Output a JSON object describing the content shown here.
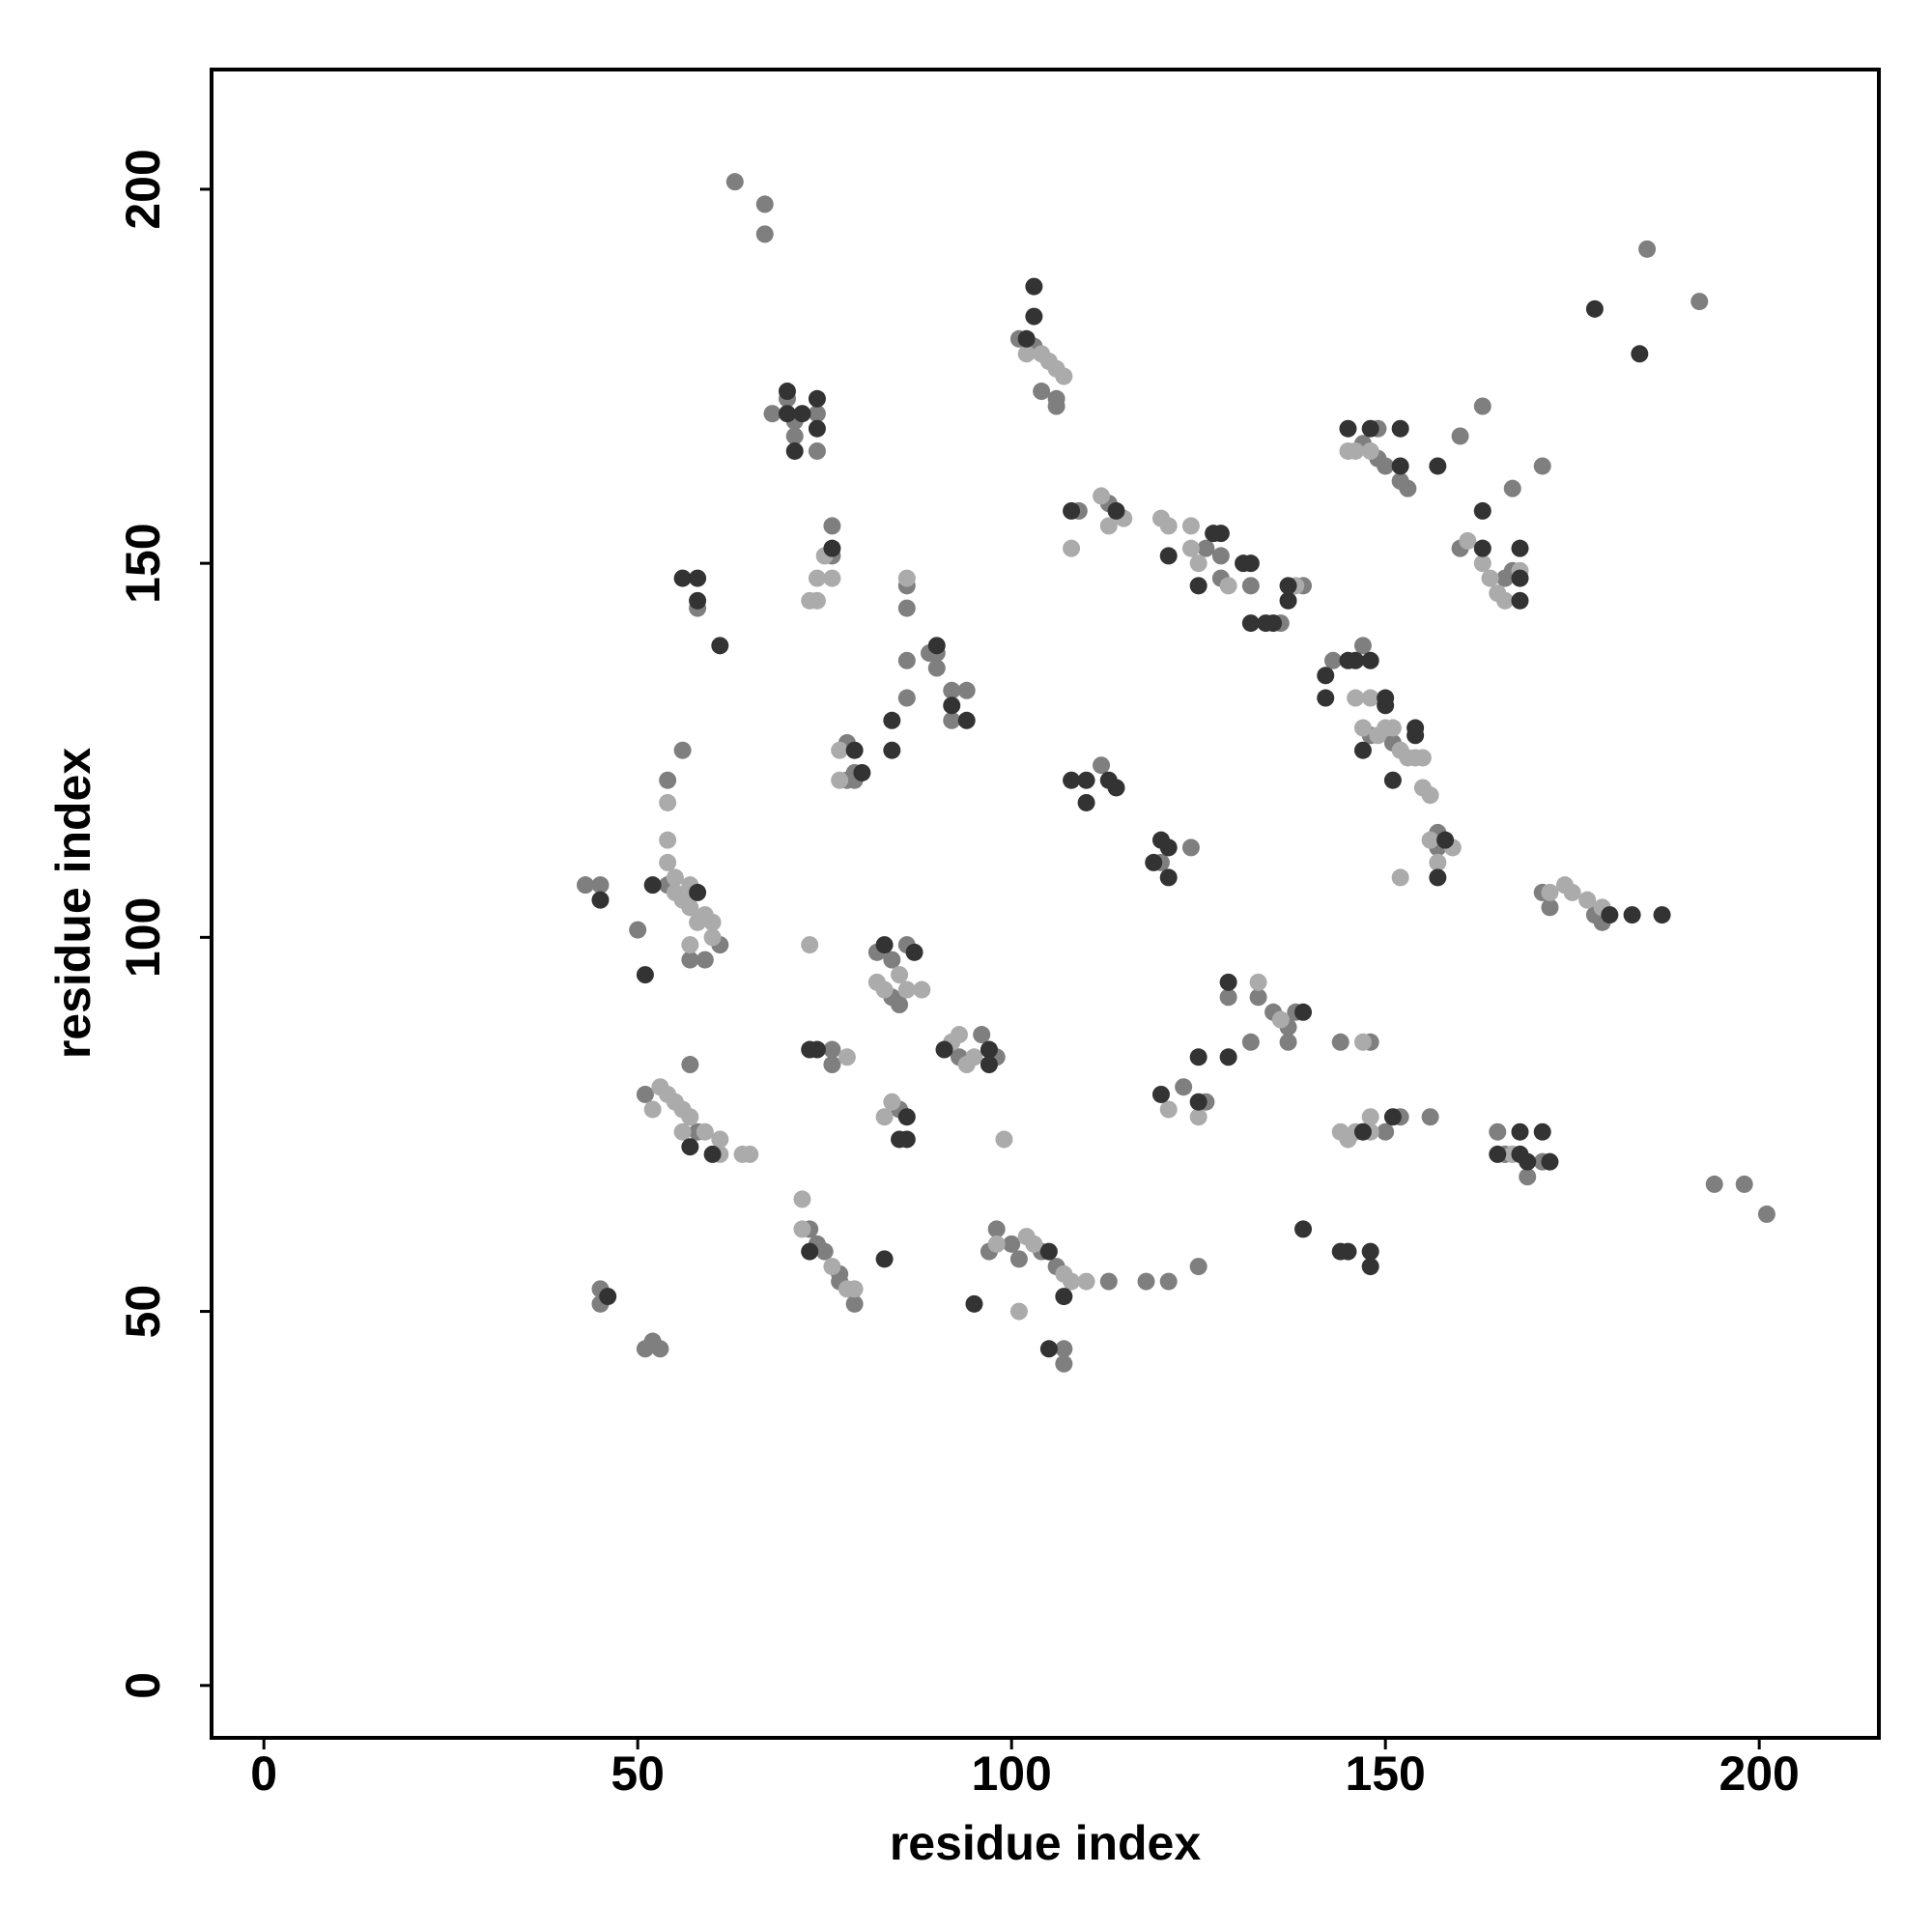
{
  "chart_data": {
    "type": "scatter",
    "x_label": "residue index",
    "y_label": "residue index",
    "xlim": [
      -7,
      216
    ],
    "ylim": [
      -7,
      216
    ],
    "xticks": [
      0,
      50,
      100,
      150,
      200
    ],
    "yticks": [
      0,
      50,
      100,
      150,
      200
    ],
    "series": [
      {
        "color": "#7f7f7f",
        "x": [
          63,
          67,
          67,
          185,
          192,
          103,
          104,
          106,
          106,
          101,
          70,
          68,
          71,
          71,
          74,
          74,
          149,
          147,
          149,
          150,
          152,
          153,
          160,
          163,
          167,
          171,
          109,
          113,
          126,
          128,
          128,
          132,
          136,
          139,
          160,
          166,
          167,
          58,
          76,
          76,
          86,
          86,
          86,
          86,
          89,
          90,
          90,
          92,
          92,
          94,
          78,
          79,
          78,
          79,
          112,
          120,
          124,
          143,
          147,
          148,
          151,
          157,
          157,
          171,
          172,
          178,
          179,
          43,
          45,
          50,
          54,
          54,
          56,
          57,
          59,
          61,
          57,
          51,
          58,
          76,
          76,
          82,
          84,
          84,
          86,
          85,
          85,
          93,
          96,
          98,
          73,
          74,
          75,
          77,
          77,
          79,
          97,
          98,
          100,
          101,
          104,
          106,
          107,
          107,
          113,
          118,
          121,
          125,
          123,
          126,
          129,
          132,
          133,
          135,
          137,
          137,
          138,
          144,
          148,
          150,
          152,
          156,
          165,
          166,
          169,
          171,
          194,
          198,
          201,
          45,
          45,
          51,
          52,
          53
        ],
        "y": [
          201,
          198,
          194,
          192,
          185,
          179,
          173,
          172,
          171,
          180,
          172,
          170,
          169,
          167,
          170,
          165,
          168,
          166,
          164,
          163,
          161,
          160,
          167,
          171,
          160,
          163,
          157,
          158,
          152,
          151,
          148,
          147,
          142,
          147,
          152,
          148,
          149,
          144,
          155,
          151,
          147,
          144,
          137,
          132,
          138,
          138,
          136,
          133,
          129,
          133,
          126,
          122,
          121,
          121,
          123,
          110,
          112,
          137,
          139,
          127,
          126,
          114,
          112,
          106,
          104,
          103,
          102,
          107,
          107,
          101,
          107,
          121,
          125,
          97,
          97,
          99,
          83,
          79,
          74,
          85,
          83,
          98,
          97,
          92,
          99,
          91,
          77,
          84,
          87,
          84,
          61,
          59,
          58,
          55,
          54,
          51,
          58,
          61,
          59,
          57,
          58,
          56,
          45,
          43,
          54,
          54,
          54,
          56,
          80,
          78,
          92,
          86,
          92,
          90,
          88,
          86,
          90,
          86,
          86,
          74,
          76,
          76,
          74,
          71,
          68,
          70,
          67,
          67,
          63,
          53,
          51,
          45,
          46,
          45
        ]
      },
      {
        "color": "#ababab",
        "x": [
          104,
          105,
          106,
          107,
          102,
          145,
          146,
          148,
          112,
          113,
          115,
          108,
          120,
          121,
          124,
          124,
          125,
          129,
          138,
          161,
          163,
          163,
          164,
          165,
          166,
          168,
          73,
          74,
          74,
          75,
          76,
          86,
          77,
          77,
          146,
          148,
          147,
          149,
          150,
          151,
          152,
          154,
          155,
          153,
          155,
          156,
          156,
          159,
          157,
          152,
          172,
          174,
          175,
          177,
          179,
          54,
          54,
          54,
          55,
          55,
          56,
          57,
          57,
          58,
          59,
          60,
          60,
          57,
          52,
          53,
          54,
          55,
          56,
          57,
          56,
          59,
          61,
          61,
          64,
          65,
          73,
          78,
          82,
          83,
          85,
          86,
          88,
          83,
          84,
          92,
          93,
          94,
          95,
          99,
          72,
          72,
          76,
          78,
          79,
          98,
          102,
          103,
          107,
          108,
          110,
          101,
          121,
          125,
          133,
          136,
          147,
          144,
          145,
          146,
          148,
          148,
          167
        ],
        "y": [
          178,
          177,
          176,
          175,
          178,
          165,
          165,
          165,
          159,
          155,
          156,
          152,
          156,
          155,
          155,
          152,
          150,
          147,
          147,
          153,
          152,
          150,
          148,
          146,
          145,
          149,
          145,
          145,
          148,
          151,
          148,
          148,
          125,
          121,
          132,
          132,
          128,
          127,
          128,
          128,
          125,
          124,
          124,
          124,
          120,
          119,
          113,
          112,
          110,
          108,
          106,
          107,
          106,
          105,
          104,
          118,
          113,
          110,
          108,
          106,
          105,
          107,
          104,
          102,
          103,
          102,
          100,
          99,
          77,
          80,
          79,
          78,
          77,
          76,
          74,
          74,
          73,
          71,
          71,
          71,
          99,
          84,
          94,
          93,
          95,
          93,
          93,
          76,
          78,
          86,
          87,
          83,
          84,
          73,
          65,
          61,
          56,
          53,
          53,
          59,
          60,
          59,
          55,
          54,
          54,
          50,
          77,
          76,
          94,
          89,
          86,
          74,
          73,
          74,
          76,
          74,
          71
        ]
      },
      {
        "color": "#333333",
        "x": [
          178,
          184,
          103,
          103,
          102,
          70,
          72,
          70,
          71,
          74,
          74,
          145,
          148,
          152,
          152,
          157,
          108,
          114,
          121,
          125,
          127,
          128,
          131,
          132,
          132,
          134,
          135,
          137,
          137,
          163,
          168,
          168,
          168,
          163,
          56,
          58,
          58,
          61,
          76,
          90,
          92,
          94,
          84,
          84,
          79,
          80,
          108,
          110,
          110,
          113,
          114,
          119,
          120,
          121,
          121,
          142,
          142,
          145,
          146,
          148,
          150,
          150,
          147,
          154,
          154,
          151,
          158,
          157,
          180,
          183,
          187,
          45,
          51,
          52,
          58,
          57,
          60,
          73,
          74,
          83,
          87,
          85,
          86,
          86,
          91,
          97,
          97,
          73,
          83,
          95,
          105,
          107,
          105,
          120,
          125,
          125,
          129,
          129,
          139,
          139,
          144,
          145,
          148,
          148,
          147,
          151,
          165,
          168,
          168,
          169,
          171,
          172,
          46
        ],
        "y": [
          184,
          178,
          187,
          183,
          180,
          173,
          170,
          170,
          165,
          172,
          168,
          168,
          168,
          168,
          163,
          163,
          157,
          157,
          151,
          147,
          154,
          154,
          150,
          150,
          142,
          142,
          142,
          145,
          147,
          157,
          148,
          145,
          152,
          152,
          148,
          148,
          145,
          139,
          152,
          139,
          131,
          129,
          129,
          125,
          125,
          122,
          121,
          121,
          118,
          121,
          120,
          110,
          113,
          112,
          108,
          135,
          132,
          137,
          137,
          137,
          131,
          132,
          125,
          127,
          128,
          121,
          113,
          108,
          103,
          103,
          103,
          105,
          95,
          107,
          106,
          72,
          71,
          85,
          85,
          99,
          98,
          73,
          73,
          76,
          85,
          85,
          83,
          58,
          57,
          51,
          58,
          52,
          45,
          79,
          78,
          84,
          84,
          94,
          90,
          61,
          58,
          58,
          58,
          56,
          74,
          76,
          71,
          74,
          71,
          70,
          74,
          70,
          52
        ]
      }
    ]
  }
}
